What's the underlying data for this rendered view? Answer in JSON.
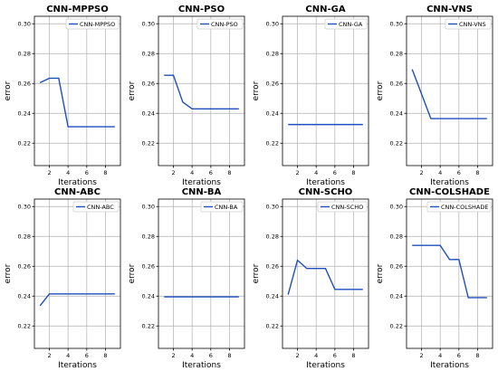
{
  "figure": {
    "line_color": "#1f4fbf",
    "grid": true,
    "legend_loc": "upper right"
  },
  "chart_data": [
    {
      "type": "line",
      "title": "CNN-MPPSO",
      "xlabel": "Iterations",
      "ylabel": "error",
      "xlim": [
        0.4,
        9.6
      ],
      "ylim": [
        0.205,
        0.305
      ],
      "xticks": [
        2,
        4,
        6,
        8
      ],
      "yticks": [
        0.22,
        0.24,
        0.26,
        0.28,
        0.3
      ],
      "series": [
        {
          "name": "CNN-MPPSO",
          "x": [
            1,
            2,
            3,
            4,
            5,
            6,
            7,
            8,
            9
          ],
          "y": [
            0.2605,
            0.2635,
            0.2635,
            0.231,
            0.231,
            0.231,
            0.231,
            0.231,
            0.231
          ]
        }
      ]
    },
    {
      "type": "line",
      "title": "CNN-PSO",
      "xlabel": "Iterations",
      "ylabel": "error",
      "xlim": [
        0.4,
        9.6
      ],
      "ylim": [
        0.205,
        0.305
      ],
      "xticks": [
        2,
        4,
        6,
        8
      ],
      "yticks": [
        0.22,
        0.24,
        0.26,
        0.28,
        0.3
      ],
      "series": [
        {
          "name": "CNN-PSO",
          "x": [
            1,
            2,
            3,
            4,
            5,
            6,
            7,
            8,
            9
          ],
          "y": [
            0.2655,
            0.2655,
            0.2475,
            0.243,
            0.243,
            0.243,
            0.243,
            0.243,
            0.243
          ]
        }
      ]
    },
    {
      "type": "line",
      "title": "CNN-GA",
      "xlabel": "Iterations",
      "ylabel": "error",
      "xlim": [
        0.4,
        9.6
      ],
      "ylim": [
        0.205,
        0.305
      ],
      "xticks": [
        2,
        4,
        6,
        8
      ],
      "yticks": [
        0.22,
        0.24,
        0.26,
        0.28,
        0.3
      ],
      "series": [
        {
          "name": "CNN-GA",
          "x": [
            1,
            2,
            3,
            4,
            5,
            6,
            7,
            8,
            9
          ],
          "y": [
            0.2325,
            0.2325,
            0.2325,
            0.2325,
            0.2325,
            0.2325,
            0.2325,
            0.2325,
            0.2325
          ]
        }
      ]
    },
    {
      "type": "line",
      "title": "CNN-VNS",
      "xlabel": "Iterations",
      "ylabel": "error",
      "xlim": [
        0.4,
        9.6
      ],
      "ylim": [
        0.205,
        0.305
      ],
      "xticks": [
        2,
        4,
        6,
        8
      ],
      "yticks": [
        0.22,
        0.24,
        0.26,
        0.28,
        0.3
      ],
      "series": [
        {
          "name": "CNN-VNS",
          "x": [
            1,
            2,
            3,
            4,
            5,
            6,
            7,
            8,
            9
          ],
          "y": [
            0.2695,
            0.253,
            0.2365,
            0.2365,
            0.2365,
            0.2365,
            0.2365,
            0.2365,
            0.2365
          ]
        }
      ]
    },
    {
      "type": "line",
      "title": "CNN-ABC",
      "xlabel": "Iterations",
      "ylabel": "error",
      "xlim": [
        0.4,
        9.6
      ],
      "ylim": [
        0.205,
        0.305
      ],
      "xticks": [
        2,
        4,
        6,
        8
      ],
      "yticks": [
        0.22,
        0.24,
        0.26,
        0.28,
        0.3
      ],
      "series": [
        {
          "name": "CNN-ABC",
          "x": [
            1,
            2,
            3,
            4,
            5,
            6,
            7,
            8,
            9
          ],
          "y": [
            0.2335,
            0.2415,
            0.2415,
            0.2415,
            0.2415,
            0.2415,
            0.2415,
            0.2415,
            0.2415
          ]
        }
      ]
    },
    {
      "type": "line",
      "title": "CNN-BA",
      "xlabel": "Iterations",
      "ylabel": "error",
      "xlim": [
        0.4,
        9.6
      ],
      "ylim": [
        0.205,
        0.305
      ],
      "xticks": [
        2,
        4,
        6,
        8
      ],
      "yticks": [
        0.22,
        0.24,
        0.26,
        0.28,
        0.3
      ],
      "series": [
        {
          "name": "CNN-BA",
          "x": [
            1,
            2,
            3,
            4,
            5,
            6,
            7,
            8,
            9
          ],
          "y": [
            0.2395,
            0.2395,
            0.2395,
            0.2395,
            0.2395,
            0.2395,
            0.2395,
            0.2395,
            0.2395
          ]
        }
      ]
    },
    {
      "type": "line",
      "title": "CNN-SCHO",
      "xlabel": "Iterations",
      "ylabel": "error",
      "xlim": [
        0.4,
        9.6
      ],
      "ylim": [
        0.205,
        0.305
      ],
      "xticks": [
        2,
        4,
        6,
        8
      ],
      "yticks": [
        0.22,
        0.24,
        0.26,
        0.28,
        0.3
      ],
      "series": [
        {
          "name": "CNN-SCHO",
          "x": [
            1,
            2,
            3,
            4,
            5,
            6,
            7,
            8,
            9
          ],
          "y": [
            0.241,
            0.264,
            0.2585,
            0.2585,
            0.2585,
            0.2445,
            0.2445,
            0.2445,
            0.2445
          ]
        }
      ]
    },
    {
      "type": "line",
      "title": "CNN-COLSHADE",
      "xlabel": "Iterations",
      "ylabel": "error",
      "xlim": [
        0.4,
        9.6
      ],
      "ylim": [
        0.205,
        0.305
      ],
      "xticks": [
        2,
        4,
        6,
        8
      ],
      "yticks": [
        0.22,
        0.24,
        0.26,
        0.28,
        0.3
      ],
      "series": [
        {
          "name": "CNN-COLSHADE",
          "x": [
            1,
            2,
            3,
            4,
            5,
            6,
            7,
            8,
            9
          ],
          "y": [
            0.274,
            0.274,
            0.274,
            0.274,
            0.2645,
            0.2645,
            0.239,
            0.239,
            0.239
          ]
        }
      ]
    }
  ]
}
